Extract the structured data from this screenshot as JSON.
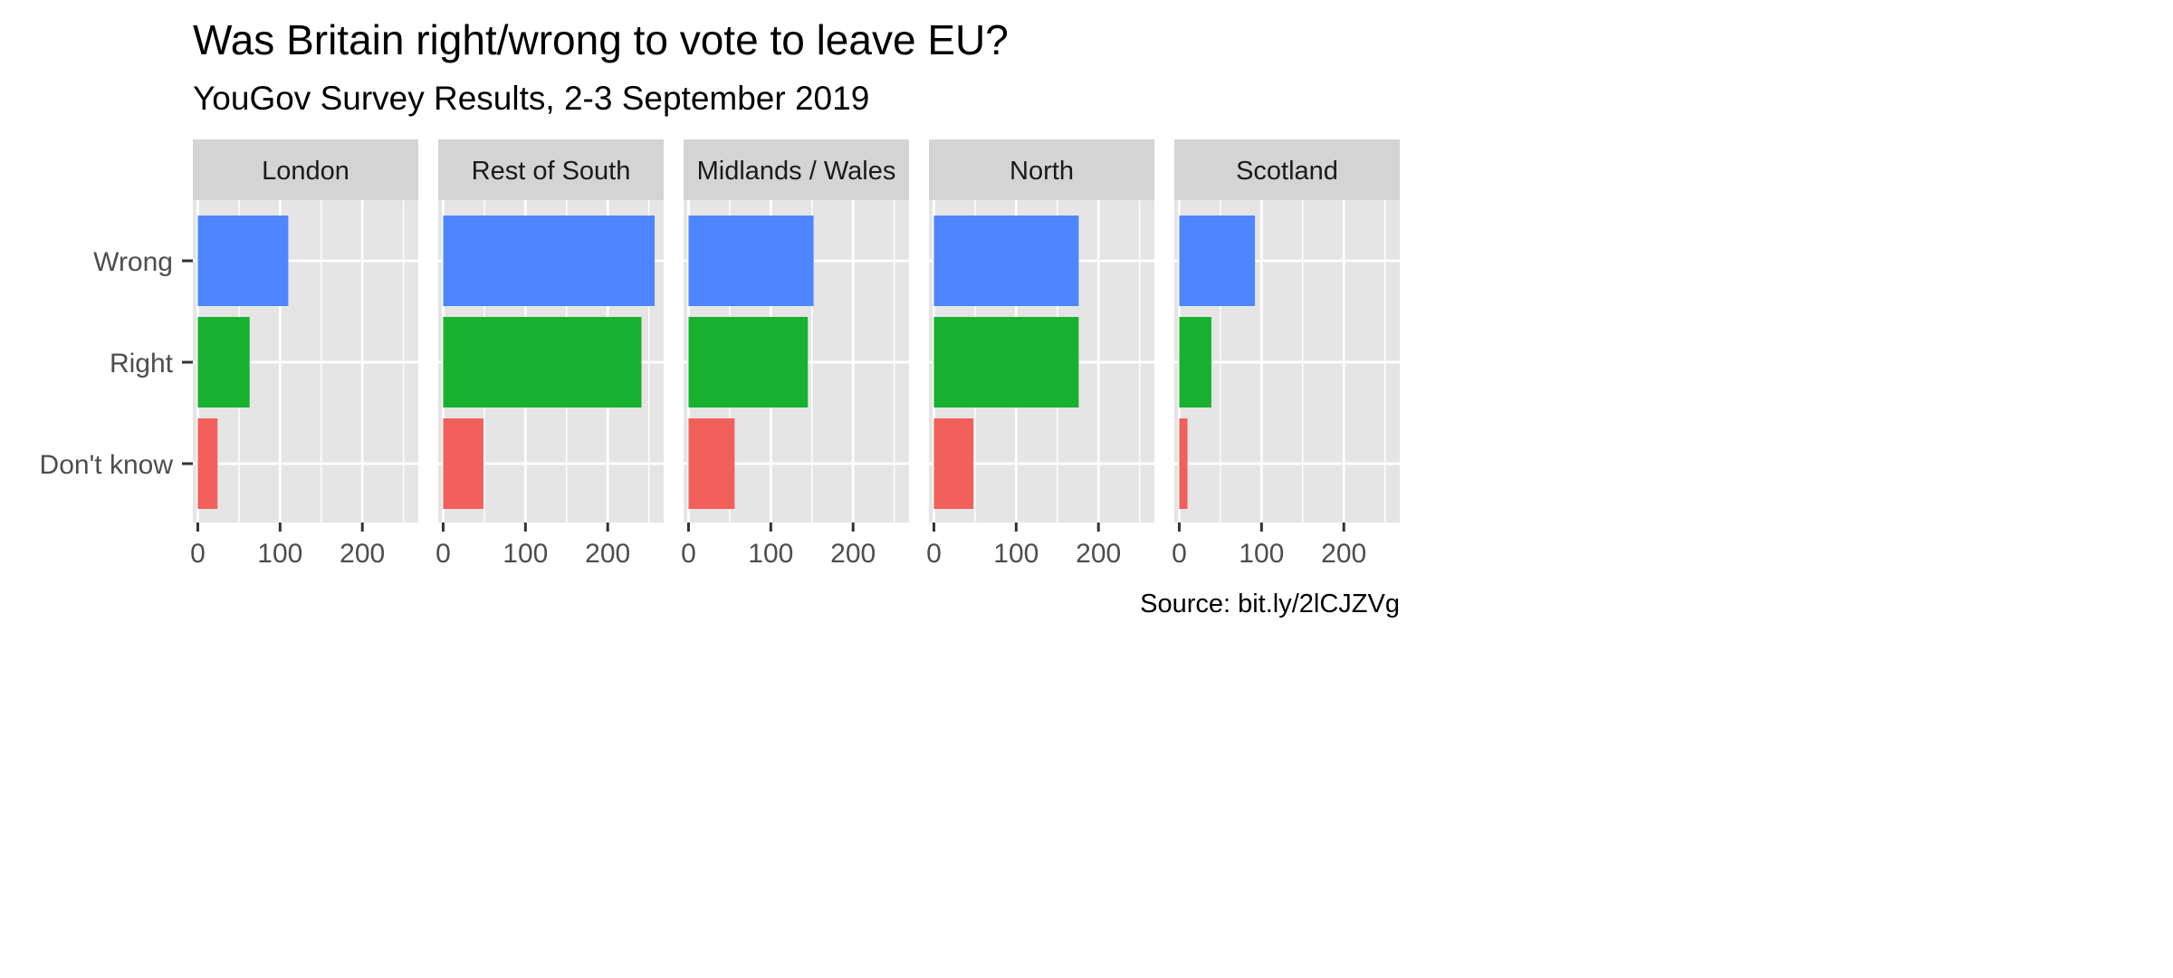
{
  "chart_data": {
    "type": "bar",
    "orientation": "horizontal",
    "title": "Was Britain right/wrong to vote to leave EU?",
    "subtitle": "YouGov Survey Results, 2-3 September 2019",
    "caption": "Source: bit.ly/2lCJZVg",
    "categories": [
      "Wrong",
      "Right",
      "Don't know"
    ],
    "category_colors": {
      "Wrong": "#4F86FF",
      "Right": "#17B12F",
      "Don't know": "#F2605B"
    },
    "panel_background": "#E5E5E5",
    "strip_background": "#D4D4D4",
    "xlim": [
      -6,
      268
    ],
    "xticks": [
      0,
      100,
      200
    ],
    "xtick_labels": [
      "0",
      "100",
      "200"
    ],
    "grid": true,
    "legend": "none",
    "facets": [
      {
        "name": "London",
        "values": [
          110,
          63,
          24
        ]
      },
      {
        "name": "Rest of South",
        "values": [
          257,
          241,
          49
        ]
      },
      {
        "name": "Midlands / Wales",
        "values": [
          152,
          145,
          56
        ]
      },
      {
        "name": "North",
        "values": [
          176,
          176,
          48
        ]
      },
      {
        "name": "Scotland",
        "values": [
          92,
          39,
          10
        ]
      }
    ]
  }
}
